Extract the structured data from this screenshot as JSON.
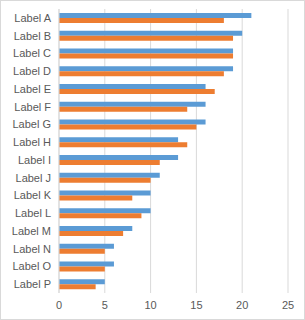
{
  "chart_data": {
    "type": "bar",
    "orientation": "horizontal",
    "categories": [
      "Label A",
      "Label B",
      "Label C",
      "Label D",
      "Label E",
      "Label F",
      "Label G",
      "Label H",
      "Label I",
      "Label J",
      "Label K",
      "Label L",
      "Label M",
      "Label N",
      "Label O",
      "Label P"
    ],
    "series": [
      {
        "color": "#5B9BD5",
        "values": [
          21,
          20,
          19,
          19,
          16,
          16,
          16,
          13,
          13,
          11,
          10,
          10,
          8,
          6,
          6,
          5
        ]
      },
      {
        "color": "#ED7D31",
        "values": [
          18,
          19,
          19,
          18,
          17,
          14,
          15,
          14,
          11,
          10,
          8,
          9,
          7,
          5,
          5,
          4
        ]
      }
    ],
    "xlim": [
      0,
      25
    ],
    "xticks": [
      0,
      5,
      10,
      15,
      20,
      25
    ],
    "grid": true
  }
}
